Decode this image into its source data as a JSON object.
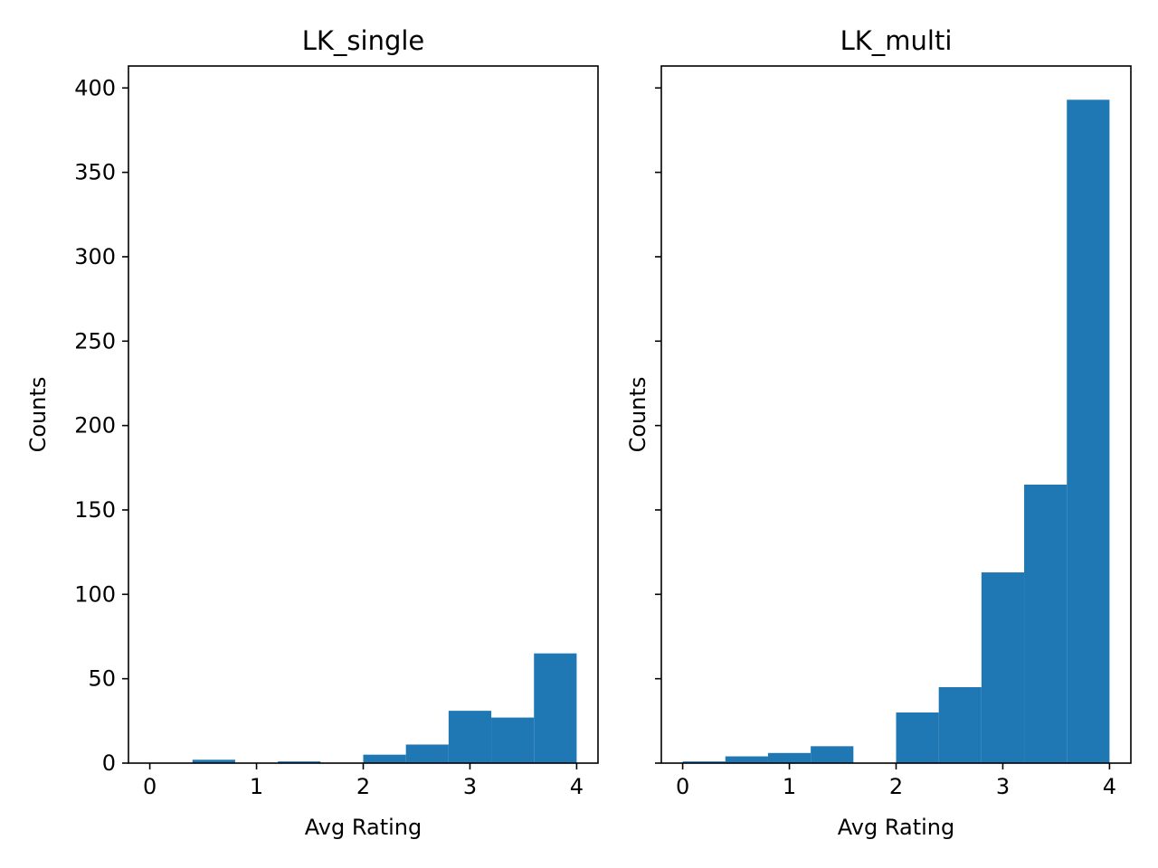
{
  "chart_data": [
    {
      "type": "bar",
      "title": "LK_single",
      "xlabel": "Avg Rating",
      "ylabel": "Counts",
      "xlim": [
        -0.2,
        4.2
      ],
      "ylim": [
        0,
        413
      ],
      "xticks": [
        0,
        1,
        2,
        3,
        4
      ],
      "xtick_labels": [
        "0",
        "1",
        "2",
        "3",
        "4"
      ],
      "yticks": [
        0,
        50,
        100,
        150,
        200,
        250,
        300,
        350,
        400
      ],
      "ytick_labels": [
        "0",
        "50",
        "100",
        "150",
        "200",
        "250",
        "300",
        "350",
        "400"
      ],
      "show_ytick_labels": true,
      "color": "#1f77b4",
      "bins": [
        [
          0.0,
          0.4
        ],
        [
          0.4,
          0.8
        ],
        [
          0.8,
          1.2
        ],
        [
          1.2,
          1.6
        ],
        [
          1.6,
          2.0
        ],
        [
          2.0,
          2.4
        ],
        [
          2.4,
          2.8
        ],
        [
          2.8,
          3.2
        ],
        [
          3.2,
          3.6
        ],
        [
          3.6,
          4.0
        ]
      ],
      "values": [
        0,
        2,
        0,
        1,
        0,
        5,
        11,
        31,
        27,
        65
      ]
    },
    {
      "type": "bar",
      "title": "LK_multi",
      "xlabel": "Avg Rating",
      "ylabel": "Counts",
      "xlim": [
        -0.2,
        4.2
      ],
      "ylim": [
        0,
        413
      ],
      "xticks": [
        0,
        1,
        2,
        3,
        4
      ],
      "xtick_labels": [
        "0",
        "1",
        "2",
        "3",
        "4"
      ],
      "yticks": [
        0,
        50,
        100,
        150,
        200,
        250,
        300,
        350,
        400
      ],
      "ytick_labels": [
        "",
        "",
        "",
        "",
        "",
        "",
        "",
        "",
        ""
      ],
      "show_ytick_labels": false,
      "color": "#1f77b4",
      "bins": [
        [
          0.0,
          0.4
        ],
        [
          0.4,
          0.8
        ],
        [
          0.8,
          1.2
        ],
        [
          1.2,
          1.6
        ],
        [
          1.6,
          2.0
        ],
        [
          2.0,
          2.4
        ],
        [
          2.4,
          2.8
        ],
        [
          2.8,
          3.2
        ],
        [
          3.2,
          3.6
        ],
        [
          3.6,
          4.0
        ]
      ],
      "values": [
        1,
        4,
        6,
        10,
        0,
        30,
        45,
        113,
        165,
        393
      ]
    }
  ]
}
